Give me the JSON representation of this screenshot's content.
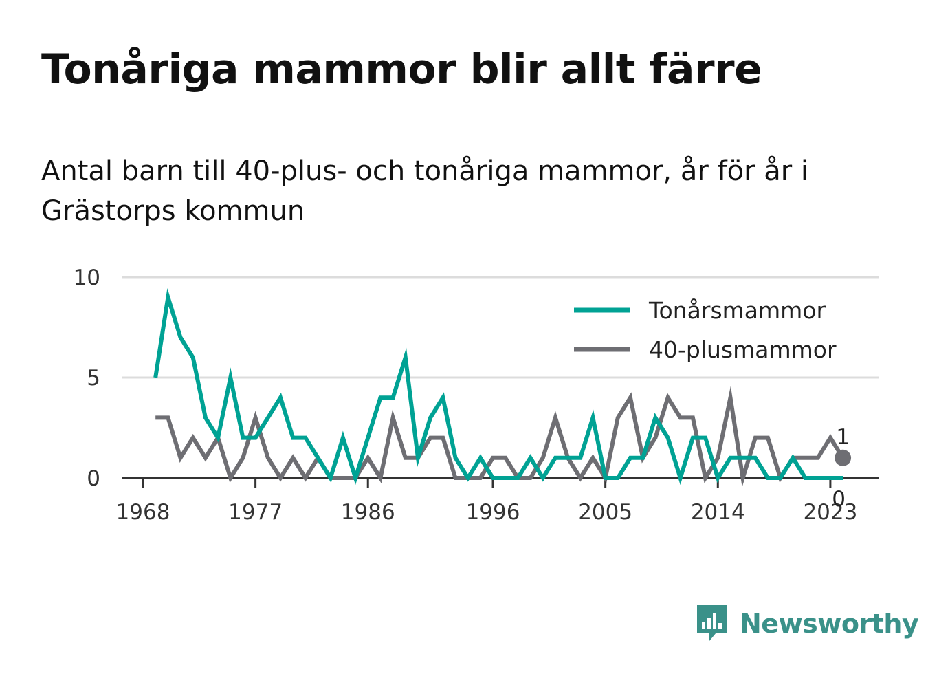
{
  "title": "Tonåriga mammor blir allt färre",
  "subtitle": "Antal barn till 40-plus- och tonåriga mammor, år för år i Grästorps kommun",
  "brand": "Newsworthy",
  "chart_data": {
    "type": "line",
    "x": [
      1969,
      1970,
      1971,
      1972,
      1973,
      1974,
      1975,
      1976,
      1977,
      1978,
      1979,
      1980,
      1981,
      1982,
      1983,
      1984,
      1985,
      1986,
      1987,
      1988,
      1989,
      1990,
      1991,
      1992,
      1993,
      1994,
      1995,
      1996,
      1997,
      1998,
      1999,
      2000,
      2001,
      2002,
      2003,
      2004,
      2005,
      2006,
      2007,
      2008,
      2009,
      2010,
      2011,
      2012,
      2013,
      2014,
      2015,
      2016,
      2017,
      2018,
      2019,
      2020,
      2021,
      2022,
      2023,
      2024
    ],
    "series": [
      {
        "name": "Tonårsmammor",
        "color": "#00a294",
        "values": [
          5,
          9,
          7,
          6,
          3,
          2,
          5,
          2,
          2,
          3,
          4,
          2,
          2,
          1,
          0,
          2,
          0,
          2,
          4,
          4,
          6,
          1,
          3,
          4,
          1,
          0,
          1,
          0,
          0,
          0,
          1,
          0,
          1,
          1,
          1,
          3,
          0,
          0,
          1,
          1,
          3,
          2,
          0,
          2,
          2,
          0,
          1,
          1,
          1,
          0,
          0,
          1,
          0,
          0,
          0,
          0
        ]
      },
      {
        "name": "40-plusmammor",
        "color": "#6e6e73",
        "values": [
          3,
          3,
          1,
          2,
          1,
          2,
          0,
          1,
          3,
          1,
          0,
          1,
          0,
          1,
          0,
          0,
          0,
          1,
          0,
          3,
          1,
          1,
          2,
          2,
          0,
          0,
          0,
          1,
          1,
          0,
          0,
          1,
          3,
          1,
          0,
          1,
          0,
          3,
          4,
          1,
          2,
          4,
          3,
          3,
          0,
          1,
          4,
          0,
          2,
          2,
          0,
          1,
          1,
          1,
          2,
          1
        ]
      }
    ],
    "x_ticks": [
      "1968",
      "1977",
      "1986",
      "1996",
      "2005",
      "2014",
      "2023"
    ],
    "y_ticks": [
      "0",
      "5",
      "10"
    ],
    "ylim": [
      0,
      10
    ],
    "xlim": [
      1968,
      2025
    ],
    "end_labels": {
      "40-plusmammor": "1",
      "Tonårsmammor": "0"
    },
    "legend_position": "top-right",
    "grid": "horizontal"
  }
}
